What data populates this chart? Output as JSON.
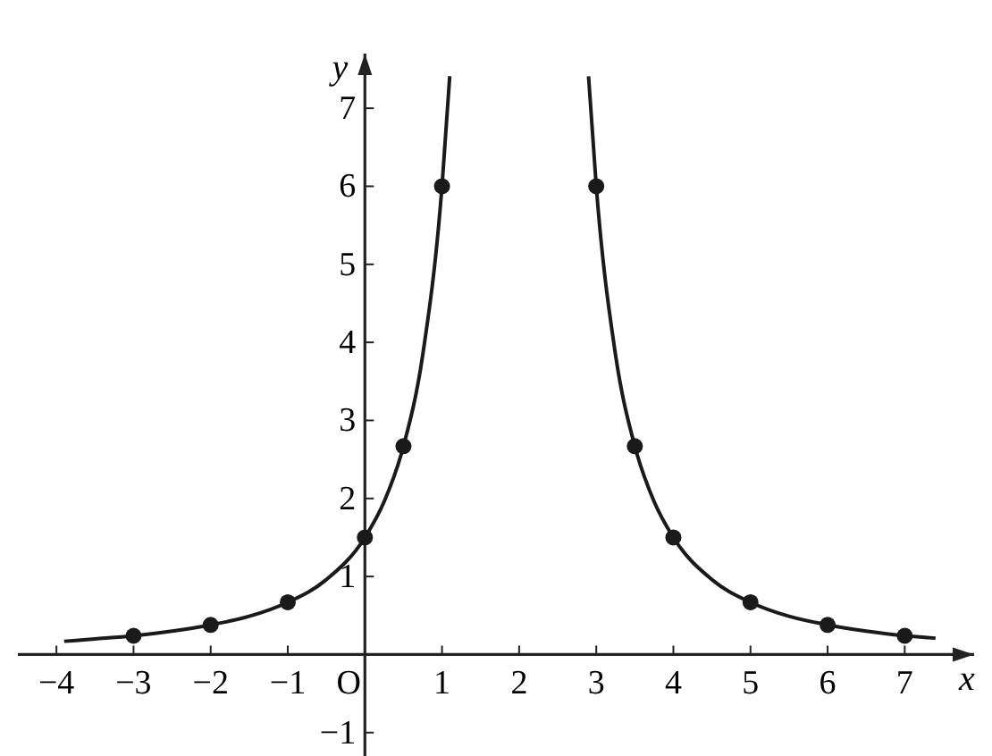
{
  "chart_data": {
    "type": "line",
    "xlabel": "x",
    "ylabel": "y",
    "xlim": [
      -4.5,
      7.9
    ],
    "ylim": [
      -1.3,
      7.7
    ],
    "xticks": [
      -4,
      -3,
      -2,
      -1,
      {
        "value": 0,
        "label": "O"
      },
      1,
      2,
      3,
      4,
      5,
      6,
      7
    ],
    "yticks": [
      -1,
      1,
      2,
      3,
      4,
      5,
      6,
      7
    ],
    "grid": false,
    "series": [
      {
        "color": "#1a1a1a",
        "marker": "none",
        "x": [
          -3.9,
          -3.5,
          -3,
          -2.5,
          -2,
          -1.5,
          -1,
          -0.5,
          0,
          0.25,
          0.5,
          0.75,
          1,
          1.1
        ],
        "values": [
          0.17,
          0.2,
          0.24,
          0.3,
          0.38,
          0.49,
          0.67,
          0.96,
          1.5,
          1.96,
          2.67,
          3.84,
          6,
          7.41
        ]
      },
      {
        "color": "#1a1a1a",
        "marker": "none",
        "x": [
          2.9,
          3,
          3.25,
          3.5,
          3.75,
          4,
          4.5,
          5,
          5.5,
          6,
          6.5,
          7,
          7.4
        ],
        "values": [
          7.41,
          6,
          3.84,
          2.67,
          1.96,
          1.5,
          0.96,
          0.67,
          0.49,
          0.38,
          0.3,
          0.24,
          0.21
        ]
      },
      {
        "type": "scatter",
        "color": "#1a1a1a",
        "marker": "circle",
        "x": [
          -3,
          -2,
          -1,
          0,
          0.5,
          1,
          3,
          3.5,
          4,
          5,
          6,
          7
        ],
        "values": [
          0.24,
          0.38,
          0.67,
          1.5,
          2.67,
          6,
          6,
          2.67,
          1.5,
          0.67,
          0.38,
          0.24
        ]
      }
    ]
  }
}
